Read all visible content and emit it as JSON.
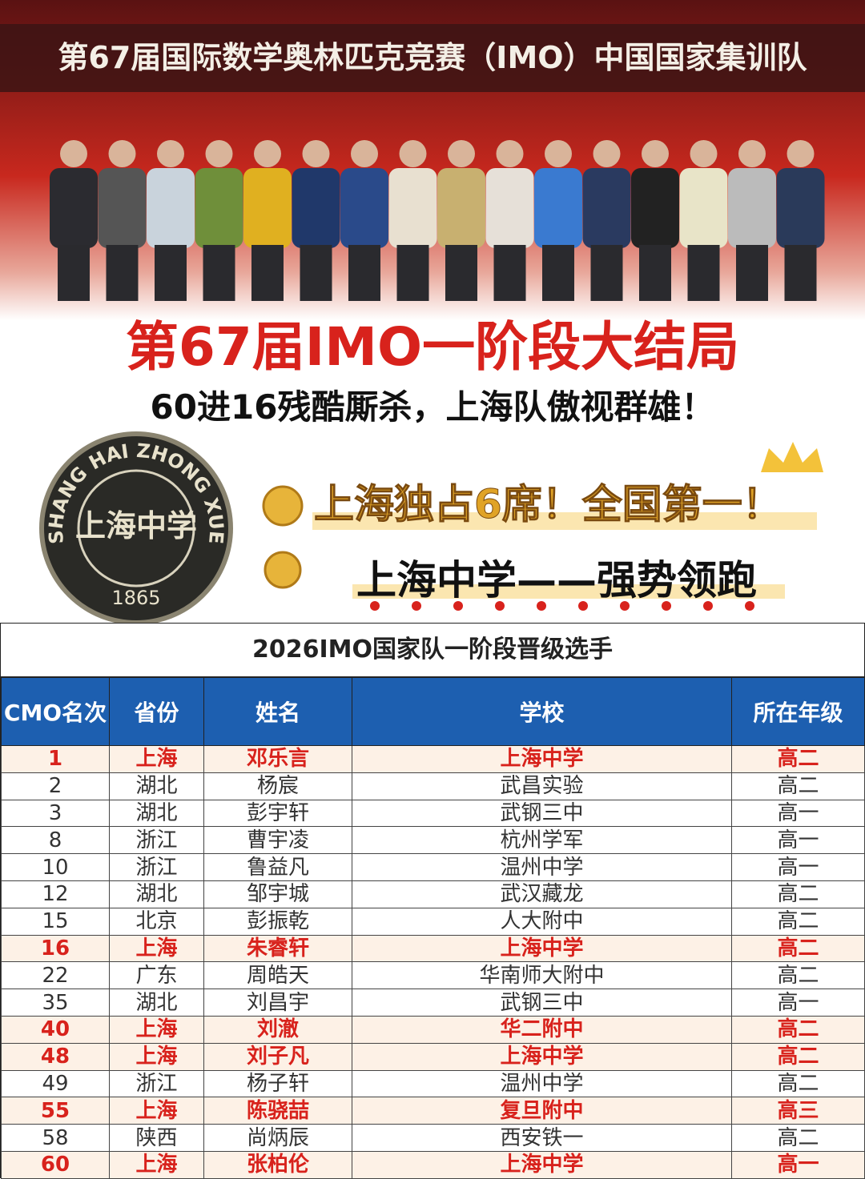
{
  "header": {
    "banner": "第67届国际数学奥林匹克竞赛（IMO）中国国家集训队",
    "headline": "第67届IMO一阶段大结局",
    "subheadline": "60进16残酷厮杀，上海队傲视群雄！"
  },
  "badge": {
    "ring_text": "SHANG HAI ZHONG XUE",
    "name": "上海中学",
    "year": "1865"
  },
  "highlights": [
    "上海独占6席！全国第一！",
    "上海中学——强势领跑"
  ],
  "table": {
    "title": "2026IMO国家队一阶段晋级选手",
    "columns": [
      "CMO名次",
      "省份",
      "姓名",
      "学校",
      "所在年级"
    ],
    "rows": [
      [
        1,
        "上海",
        "邓乐言",
        "上海中学",
        "高二"
      ],
      [
        2,
        "湖北",
        "杨宸",
        "武昌实验",
        "高二"
      ],
      [
        3,
        "湖北",
        "彭宇轩",
        "武钢三中",
        "高一"
      ],
      [
        8,
        "浙江",
        "曹宇凌",
        "杭州学军",
        "高一"
      ],
      [
        10,
        "浙江",
        "鲁益凡",
        "温州中学",
        "高一"
      ],
      [
        12,
        "湖北",
        "邹宇城",
        "武汉藏龙",
        "高二"
      ],
      [
        15,
        "北京",
        "彭振乾",
        "人大附中",
        "高二"
      ],
      [
        16,
        "上海",
        "朱睿轩",
        "上海中学",
        "高二"
      ],
      [
        22,
        "广东",
        "周皓天",
        "华南师大附中",
        "高二"
      ],
      [
        35,
        "湖北",
        "刘昌宇",
        "武钢三中",
        "高一"
      ],
      [
        40,
        "上海",
        "刘澈",
        "华二附中",
        "高二"
      ],
      [
        48,
        "上海",
        "刘子凡",
        "上海中学",
        "高二"
      ],
      [
        49,
        "浙江",
        "杨子轩",
        "温州中学",
        "高二"
      ],
      [
        55,
        "上海",
        "陈骁喆",
        "复旦附中",
        "高三"
      ],
      [
        58,
        "陕西",
        "尚炳辰",
        "西安铁一",
        "高二"
      ],
      [
        60,
        "上海",
        "张柏伦",
        "上海中学",
        "高一"
      ]
    ],
    "row_text_colors": [
      "#d8221c",
      "#333",
      "#333",
      "#333",
      "#333",
      "#333",
      "#333",
      "#d8221c",
      "#333",
      "#333",
      "#d8221c",
      "#d8221c",
      "#333",
      "#d8221c",
      "#333",
      "#d8221c"
    ],
    "row_fills": [
      "#fdf1e6",
      "#fff",
      "#fff",
      "#fff",
      "#fff",
      "#fff",
      "#fff",
      "#fdf1e6",
      "#fff",
      "#fff",
      "#fdf1e6",
      "#fdf1e6",
      "#fff",
      "#fdf1e6",
      "#fff",
      "#fdf1e6"
    ]
  }
}
